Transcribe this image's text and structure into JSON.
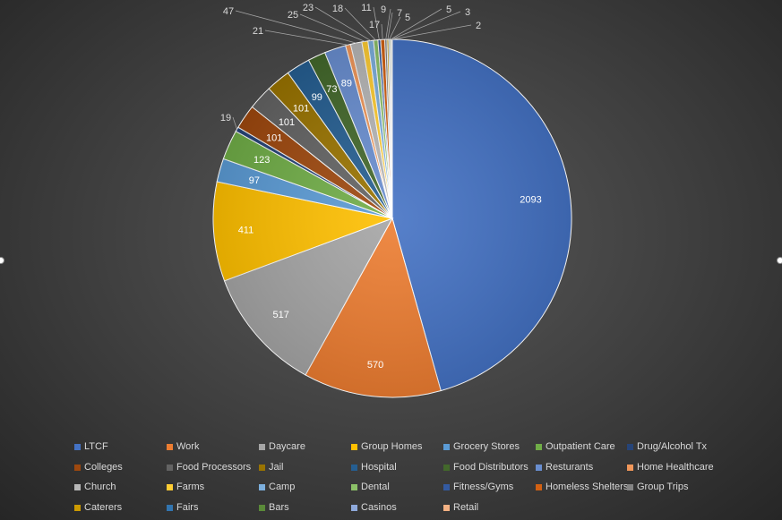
{
  "chart_data": {
    "type": "pie",
    "title": "",
    "categories": [
      "LTCF",
      "Work",
      "Daycare",
      "Group Homes",
      "Grocery Stores",
      "Outpatient Care",
      "Drug/Alcohol Tx",
      "Colleges",
      "Food Processors",
      "Jail",
      "Hospital",
      "Food Distributors",
      "Resturants",
      "Home Healthcare",
      "Church",
      "Farms",
      "Camp",
      "Dental",
      "Fitness/Gyms",
      "Homeless Shelters",
      "Group Trips",
      "Caterers",
      "Fairs",
      "Bars",
      "Casinos",
      "Retail"
    ],
    "values": [
      2093,
      570,
      517,
      411,
      97,
      123,
      19,
      101,
      101,
      101,
      99,
      73,
      89,
      21,
      47,
      25,
      23,
      18,
      11,
      17,
      9,
      7,
      5,
      5,
      3,
      2
    ],
    "colors": [
      "#4472C4",
      "#ED7D31",
      "#A5A5A5",
      "#FFC000",
      "#5B9BD5",
      "#70AD47",
      "#264478",
      "#9E480E",
      "#636363",
      "#997300",
      "#255E91",
      "#43682B",
      "#698ED0",
      "#F1975A",
      "#B7B7B7",
      "#FFCD33",
      "#7CAFDD",
      "#8CC168",
      "#335AA1",
      "#D26012",
      "#848484",
      "#CC9A00",
      "#3275B0",
      "#5A8A39",
      "#8FAADC",
      "#F4B183"
    ],
    "legend_position": "bottom"
  }
}
